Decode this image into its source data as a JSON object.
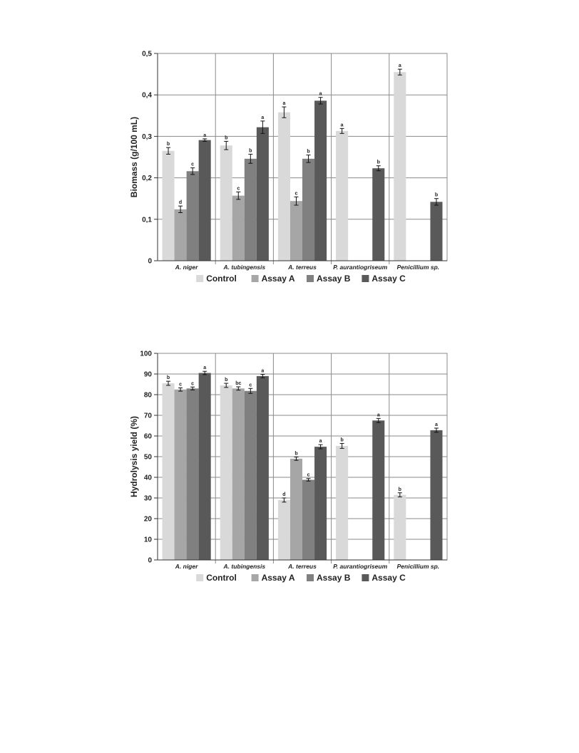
{
  "chart_data": [
    {
      "type": "bar",
      "ylabel": "Biomass (g/100 mL)",
      "ylim": [
        0,
        0.5
      ],
      "yticks": [
        "0",
        "0,1",
        "0,2",
        "0,3",
        "0,4",
        "0,5"
      ],
      "grid": true,
      "legend": "bottom",
      "categories": [
        "A. niger",
        "A. tubingensis",
        "A. terreus",
        "P. aurantiogriseum",
        "Penicillium sp."
      ],
      "series": [
        {
          "name": "Control",
          "color": "#d9d9d9",
          "values": [
            0.265,
            0.278,
            0.358,
            0.313,
            0.455
          ],
          "errors": [
            0.008,
            0.01,
            0.013,
            0.006,
            0.007
          ],
          "labels": [
            "b",
            "b",
            "a",
            "a",
            "a"
          ]
        },
        {
          "name": "Assay A",
          "color": "#a6a6a6",
          "values": [
            0.124,
            0.157,
            0.144,
            null,
            null
          ],
          "errors": [
            0.008,
            0.009,
            0.01,
            null,
            null
          ],
          "labels": [
            "d",
            "c",
            "c",
            null,
            null
          ]
        },
        {
          "name": "Assay B",
          "color": "#808080",
          "values": [
            0.216,
            0.246,
            0.246,
            null,
            null
          ],
          "errors": [
            0.008,
            0.011,
            0.009,
            null,
            null
          ],
          "labels": [
            "c",
            "b",
            "b",
            null,
            null
          ]
        },
        {
          "name": "Assay C",
          "color": "#595959",
          "values": [
            0.291,
            0.322,
            0.386,
            0.223,
            0.142
          ],
          "errors": [
            0.003,
            0.015,
            0.008,
            0.006,
            0.008
          ],
          "labels": [
            "a",
            "a",
            "a",
            "b",
            "b"
          ]
        }
      ]
    },
    {
      "type": "bar",
      "ylabel": "Hydrolysis yield (%)",
      "ylim": [
        0,
        100
      ],
      "yticks": [
        "0",
        "10",
        "20",
        "30",
        "40",
        "50",
        "60",
        "70",
        "80",
        "90",
        "100"
      ],
      "grid": true,
      "legend": "bottom",
      "categories": [
        "A. niger",
        "A. tubingensis",
        "A. terreus",
        "P. aurantiogriseum",
        "Penicillium sp."
      ],
      "series": [
        {
          "name": "Control",
          "color": "#d9d9d9",
          "values": [
            85.5,
            84.5,
            29.0,
            55.2,
            31.5
          ],
          "errors": [
            1.0,
            1.0,
            1.0,
            1.2,
            1.0
          ],
          "labels": [
            "b",
            "b",
            "d",
            "b",
            "b"
          ]
        },
        {
          "name": "Assay A",
          "color": "#a6a6a6",
          "values": [
            82.5,
            83.0,
            49.0,
            null,
            null
          ],
          "errors": [
            0.8,
            0.8,
            0.8,
            null,
            null
          ],
          "labels": [
            "c",
            "bc",
            "b",
            null,
            null
          ]
        },
        {
          "name": "Assay B",
          "color": "#808080",
          "values": [
            83.0,
            81.8,
            38.8,
            null,
            null
          ],
          "errors": [
            0.7,
            1.2,
            0.6,
            null,
            null
          ],
          "labels": [
            "c",
            "c",
            "c",
            null,
            null
          ]
        },
        {
          "name": "Assay C",
          "color": "#595959",
          "values": [
            90.5,
            89.0,
            54.8,
            67.5,
            62.8
          ],
          "errors": [
            0.8,
            0.8,
            1.0,
            1.0,
            1.0
          ],
          "labels": [
            "a",
            "a",
            "a",
            "a",
            "a"
          ]
        }
      ]
    }
  ]
}
